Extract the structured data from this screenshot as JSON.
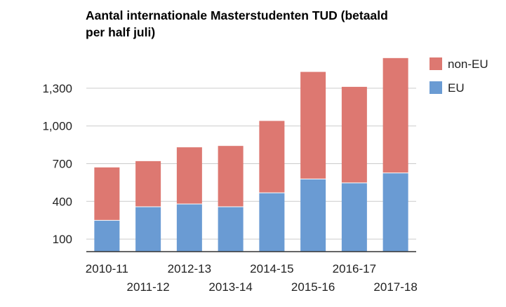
{
  "chart_data": {
    "type": "bar",
    "stacked": true,
    "title": "Aantal internationale Masterstudenten TUD (betaald per half juli)",
    "xlabel": "",
    "ylabel": "",
    "categories": [
      "2010-11",
      "2011-12",
      "2012-13",
      "2013-14",
      "2014-15",
      "2015-16",
      "2016-17",
      "2017-18"
    ],
    "series": [
      {
        "name": "EU",
        "color": "#6a9bd3",
        "values": [
          249,
          357,
          379,
          357,
          468,
          578,
          547,
          626
        ]
      },
      {
        "name": "non-EU",
        "color": "#dd7871",
        "values": [
          424,
          366,
          454,
          487,
          575,
          855,
          767,
          917
        ]
      }
    ],
    "ylim": [
      0,
      1560
    ],
    "yticks": [
      100,
      400,
      700,
      1000,
      1300
    ],
    "ytick_labels": [
      "100",
      "400",
      "700",
      "1,000",
      "1,300"
    ],
    "grid": true,
    "legend": "right"
  }
}
